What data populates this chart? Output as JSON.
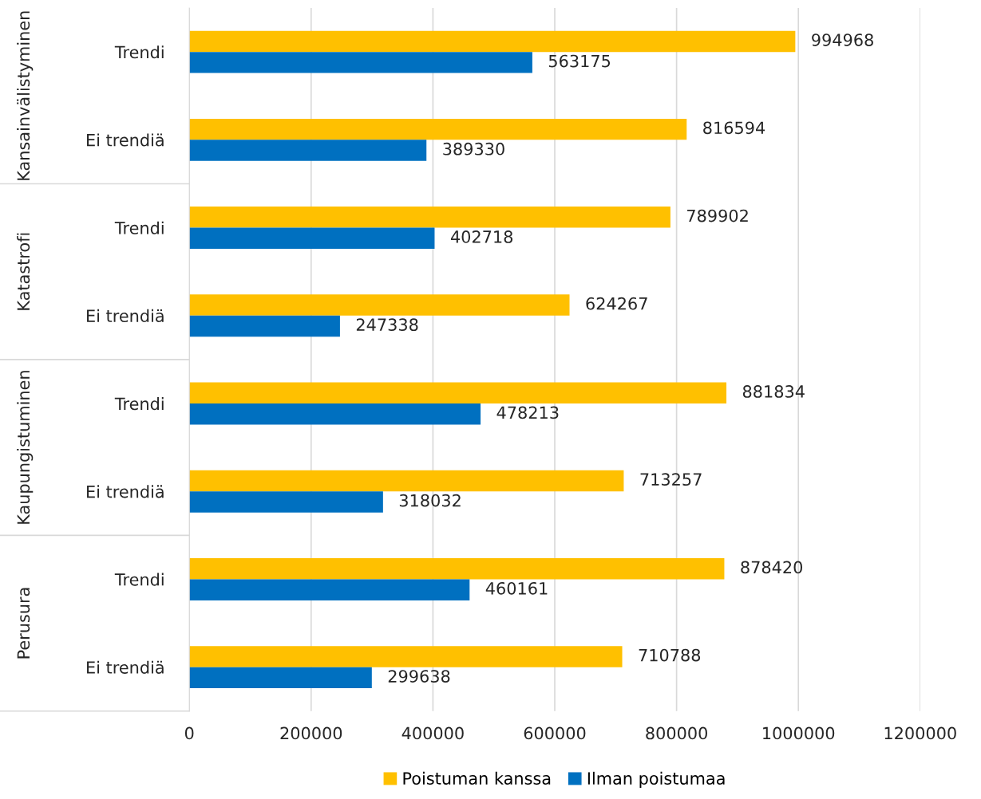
{
  "chart_data": {
    "type": "bar",
    "orientation": "horizontal",
    "categories": [
      "Trendi",
      "Ei trendiä",
      "Trendi",
      "Ei trendiä",
      "Trendi",
      "Ei trendiä",
      "Trendi",
      "Ei trendiä"
    ],
    "series": [
      {
        "name": "Poistuman kanssa",
        "color": "#ffc000",
        "values": [
          994968,
          816594,
          789902,
          624267,
          881834,
          713257,
          878420,
          710788
        ]
      },
      {
        "name": "Ilman poistumaa",
        "color": "#0070c0",
        "values": [
          563175,
          389330,
          402718,
          247338,
          478213,
          318032,
          460161,
          299638
        ]
      }
    ],
    "annotations": [
      "Kansainvälistyminen",
      "Katastrofi",
      "Kaupungistuminen",
      "Perusura"
    ],
    "xlim": [
      0,
      1200000
    ],
    "xticks": [
      0,
      200000,
      400000,
      600000,
      800000,
      1000000,
      1200000
    ],
    "grid": "x",
    "legend": "bottom",
    "data_labels": true
  }
}
